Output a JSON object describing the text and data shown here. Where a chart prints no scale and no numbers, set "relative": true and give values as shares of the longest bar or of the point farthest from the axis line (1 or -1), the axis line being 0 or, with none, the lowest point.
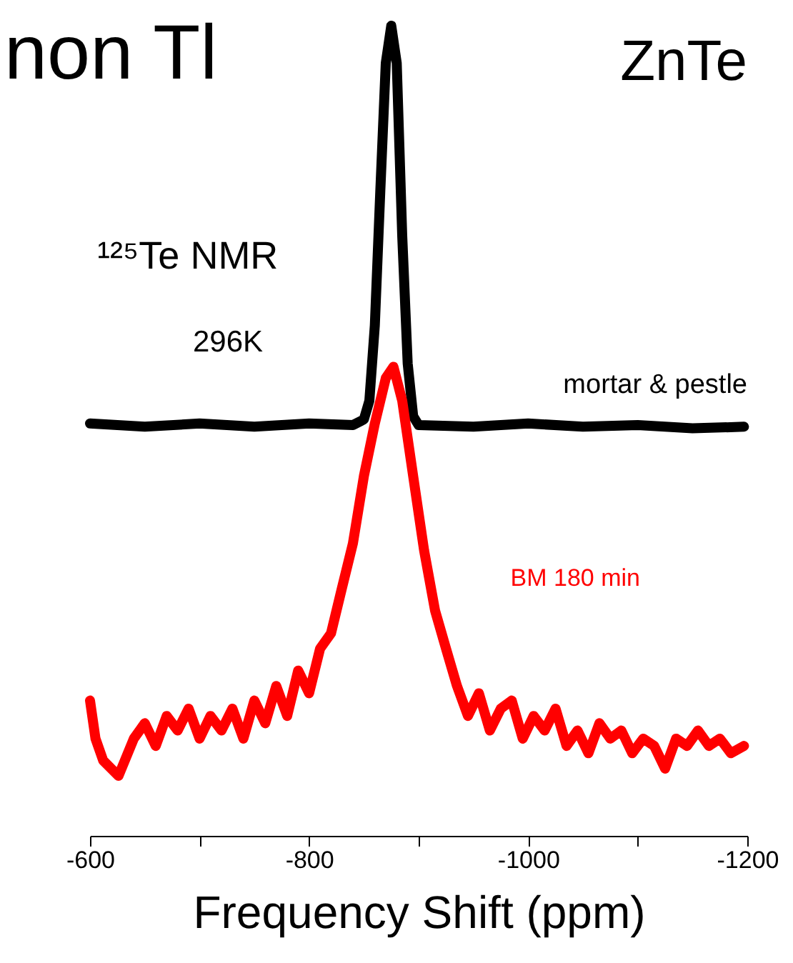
{
  "chart_data": {
    "type": "line",
    "relative": true,
    "title": "non Tl",
    "xlabel": "Frequency Shift (ppm)",
    "annotations": [
      "ZnTe",
      "¹²⁵Te NMR",
      "296K"
    ],
    "xlim": [
      -600,
      -1200
    ],
    "xticks": [
      -600,
      {
        "value": -700,
        "label": null
      },
      -800,
      {
        "value": -900,
        "label": null
      },
      -1000,
      {
        "value": -1100,
        "label": null
      },
      -1200
    ],
    "marker": "none",
    "line_style": "solid",
    "series": [
      {
        "name": "mortar & pestle",
        "color": "#000000",
        "x": [
          -600,
          -650,
          -700,
          -750,
          -800,
          -840,
          -850,
          -855,
          -860,
          -865,
          -870,
          -875,
          -880,
          -885,
          -890,
          -895,
          -900,
          -950,
          -1000,
          -1050,
          -1100,
          -1150,
          -1197
        ],
        "values": [
          0.509,
          0.505,
          0.509,
          0.505,
          0.509,
          0.507,
          0.514,
          0.537,
          0.63,
          0.796,
          0.954,
          1.0,
          0.954,
          0.741,
          0.583,
          0.518,
          0.507,
          0.505,
          0.509,
          0.505,
          0.507,
          0.503,
          0.505
        ]
      },
      {
        "name": "BM  180 min",
        "color": "#ff0000",
        "x": [
          -600,
          -605,
          -612,
          -626,
          -640,
          -650,
          -660,
          -670,
          -680,
          -690,
          -700,
          -710,
          -720,
          -730,
          -740,
          -750,
          -760,
          -770,
          -780,
          -790,
          -800,
          -810,
          -820,
          -830,
          -840,
          -850,
          -860,
          -870,
          -877,
          -885,
          -895,
          -905,
          -915,
          -925,
          -935,
          -945,
          -955,
          -965,
          -975,
          -985,
          -995,
          -1005,
          -1015,
          -1025,
          -1035,
          -1045,
          -1055,
          -1065,
          -1075,
          -1085,
          -1095,
          -1105,
          -1115,
          -1125,
          -1135,
          -1145,
          -1155,
          -1165,
          -1175,
          -1185,
          -1197
        ],
        "values": [
          0.167,
          0.12,
          0.093,
          0.074,
          0.12,
          0.139,
          0.111,
          0.148,
          0.13,
          0.157,
          0.12,
          0.148,
          0.13,
          0.157,
          0.12,
          0.167,
          0.139,
          0.185,
          0.148,
          0.204,
          0.176,
          0.231,
          0.25,
          0.306,
          0.361,
          0.444,
          0.509,
          0.565,
          0.579,
          0.537,
          0.444,
          0.352,
          0.278,
          0.231,
          0.185,
          0.148,
          0.176,
          0.13,
          0.157,
          0.167,
          0.12,
          0.148,
          0.13,
          0.157,
          0.111,
          0.13,
          0.102,
          0.139,
          0.12,
          0.13,
          0.102,
          0.12,
          0.111,
          0.083,
          0.12,
          0.111,
          0.13,
          0.111,
          0.12,
          0.102,
          0.111
        ]
      }
    ]
  }
}
